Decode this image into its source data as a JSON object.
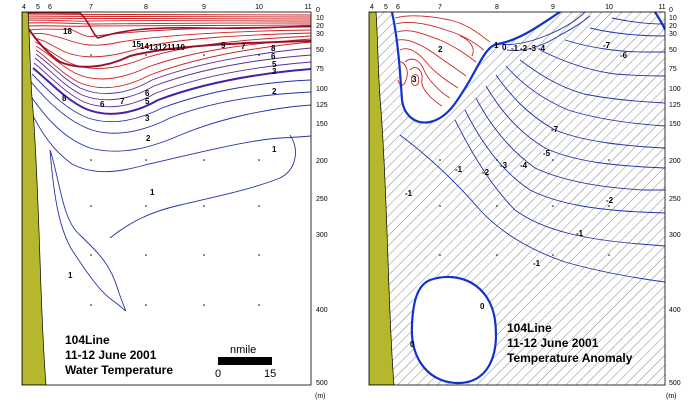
{
  "chart_data": [
    {
      "type": "contour",
      "panel": "left",
      "annotation": [
        "104Line",
        "11-12 June 2001",
        "Water Temperature"
      ],
      "station_labels": [
        "4",
        "5",
        "6",
        "7",
        "8",
        "9",
        "10",
        "11"
      ],
      "depth_labels": [
        "0",
        "10",
        "20",
        "30",
        "50",
        "75",
        "100",
        "125",
        "150",
        "200",
        "250",
        "300",
        "400",
        "500"
      ],
      "depth_unit": "(m)",
      "scale_bar": {
        "title": "nmile",
        "start": "0",
        "end": "15"
      },
      "contour_labels": [
        "18",
        "15",
        "14",
        "13",
        "12",
        "11",
        "10",
        "9",
        "8",
        "7",
        "6",
        "5",
        "4",
        "3",
        "2",
        "1"
      ]
    },
    {
      "type": "contour",
      "panel": "right",
      "annotation": [
        "104Line",
        "11-12 June 2001",
        "Temperature Anomaly"
      ],
      "station_labels": [
        "4",
        "5",
        "6",
        "7",
        "8",
        "9",
        "10",
        "11"
      ],
      "depth_labels": [
        "0",
        "10",
        "20",
        "30",
        "50",
        "75",
        "100",
        "125",
        "150",
        "200",
        "250",
        "300",
        "400",
        "500"
      ],
      "depth_unit": "(m)",
      "contour_labels": [
        "3",
        "2",
        "1",
        "0",
        "-1",
        "-2",
        "-3",
        "-4",
        "-5",
        "-6",
        "-7"
      ]
    }
  ],
  "colors": {
    "coast": "#b5b82c",
    "positive": "#cc2222",
    "negative": "#2233aa",
    "zero": "#1133cc",
    "hatch": "#555566"
  }
}
